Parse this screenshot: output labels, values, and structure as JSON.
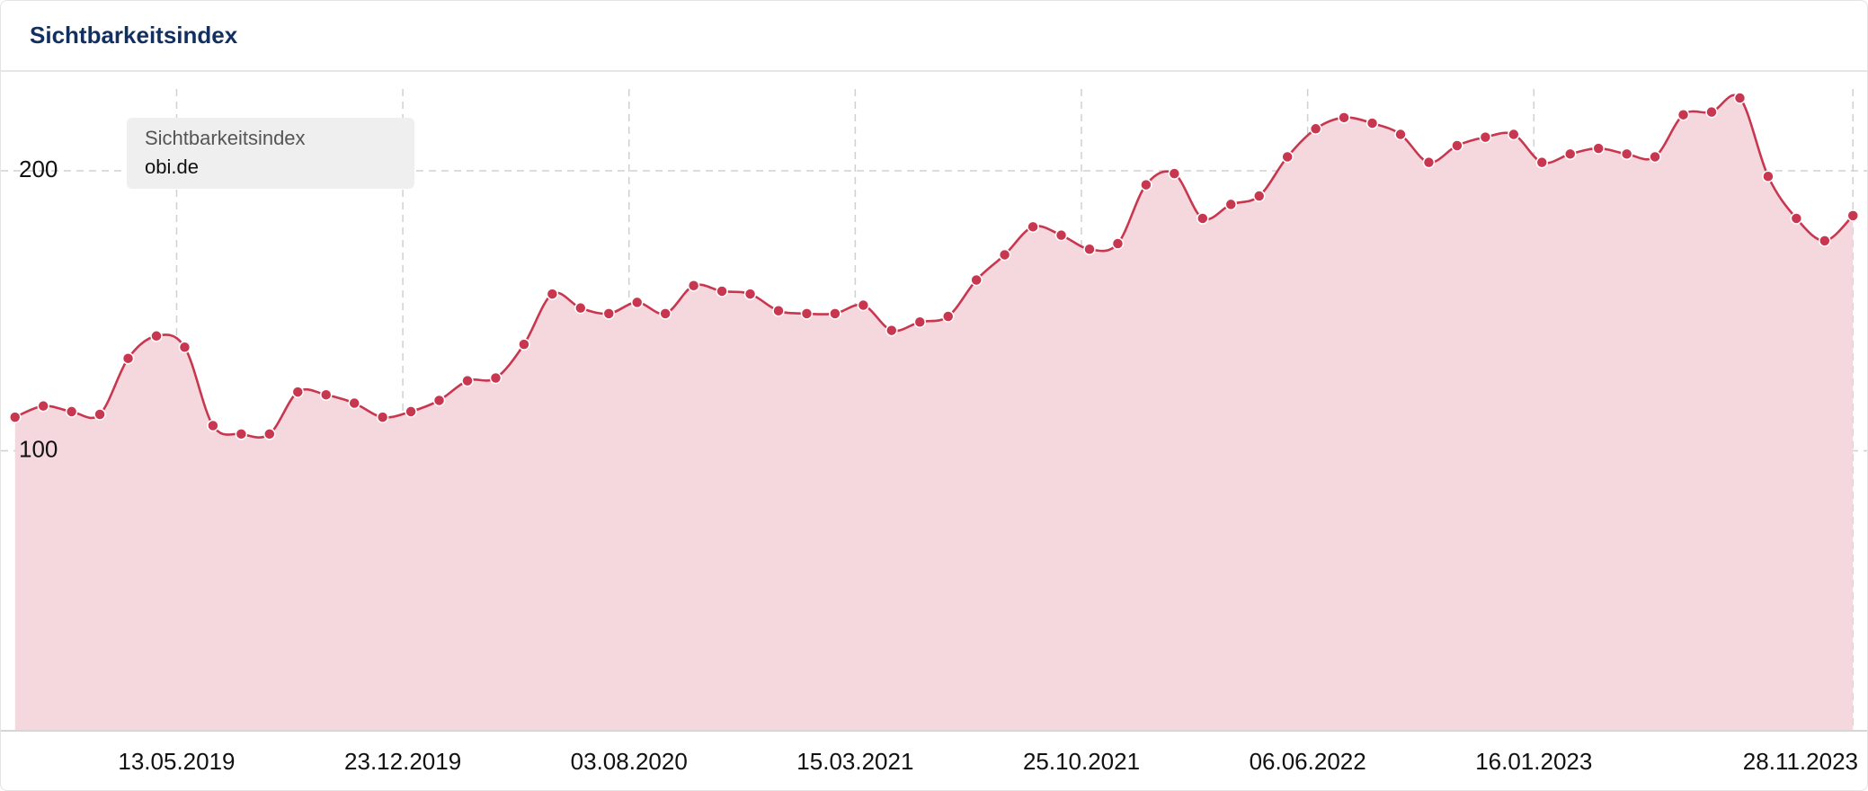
{
  "chart_data": {
    "type": "area",
    "title": "Sichtbarkeitsindex",
    "legend_title": "Sichtbarkeitsindex",
    "legend_position": "top-left",
    "grid": true,
    "x": [
      "04.12.2018",
      "01.01.2019",
      "29.01.2019",
      "26.02.2019",
      "26.03.2019",
      "23.04.2019",
      "21.05.2019",
      "18.06.2019",
      "16.07.2019",
      "13.08.2019",
      "10.09.2019",
      "08.10.2019",
      "05.11.2019",
      "03.12.2019",
      "31.12.2019",
      "28.01.2020",
      "25.02.2020",
      "24.03.2020",
      "21.04.2020",
      "19.05.2020",
      "16.06.2020",
      "14.07.2020",
      "11.08.2020",
      "08.09.2020",
      "06.10.2020",
      "03.11.2020",
      "01.12.2020",
      "29.12.2020",
      "26.01.2021",
      "23.02.2021",
      "23.03.2021",
      "20.04.2021",
      "18.05.2021",
      "15.06.2021",
      "13.07.2021",
      "10.08.2021",
      "07.09.2021",
      "05.10.2021",
      "02.11.2021",
      "30.11.2021",
      "28.12.2021",
      "25.01.2022",
      "22.02.2022",
      "22.03.2022",
      "19.04.2022",
      "17.05.2022",
      "14.06.2022",
      "12.07.2022",
      "09.08.2022",
      "06.09.2022",
      "04.10.2022",
      "01.11.2022",
      "29.11.2022",
      "27.12.2022",
      "24.01.2023",
      "21.02.2023",
      "21.03.2023",
      "18.04.2023",
      "16.05.2023",
      "13.06.2023",
      "11.07.2023",
      "08.08.2023",
      "05.09.2023",
      "03.10.2023",
      "31.10.2023",
      "28.11.2023"
    ],
    "series": [
      {
        "name": "obi.de",
        "color": "#c8374f",
        "fill": "#f5d8de",
        "values": [
          112,
          116,
          114,
          113,
          133,
          141,
          137,
          109,
          106,
          106,
          121,
          120,
          117,
          112,
          114,
          118,
          125,
          126,
          138,
          156,
          151,
          149,
          153,
          149,
          159,
          157,
          156,
          150,
          149,
          149,
          152,
          143,
          146,
          148,
          161,
          170,
          180,
          177,
          172,
          174,
          195,
          199,
          183,
          188,
          191,
          205,
          215,
          219,
          217,
          213,
          203,
          209,
          212,
          213,
          203,
          206,
          208,
          206,
          205,
          220,
          221,
          226,
          198,
          183,
          175,
          184
        ]
      }
    ],
    "xlim": [
      "20.11.2018",
      "12.12.2023"
    ],
    "xticks": [
      "13.05.2019",
      "23.12.2019",
      "03.08.2020",
      "15.03.2021",
      "25.10.2021",
      "06.06.2022",
      "16.01.2023",
      "28.11.2023"
    ],
    "ylim": [
      0,
      235
    ],
    "yticks": [
      100,
      200
    ]
  }
}
